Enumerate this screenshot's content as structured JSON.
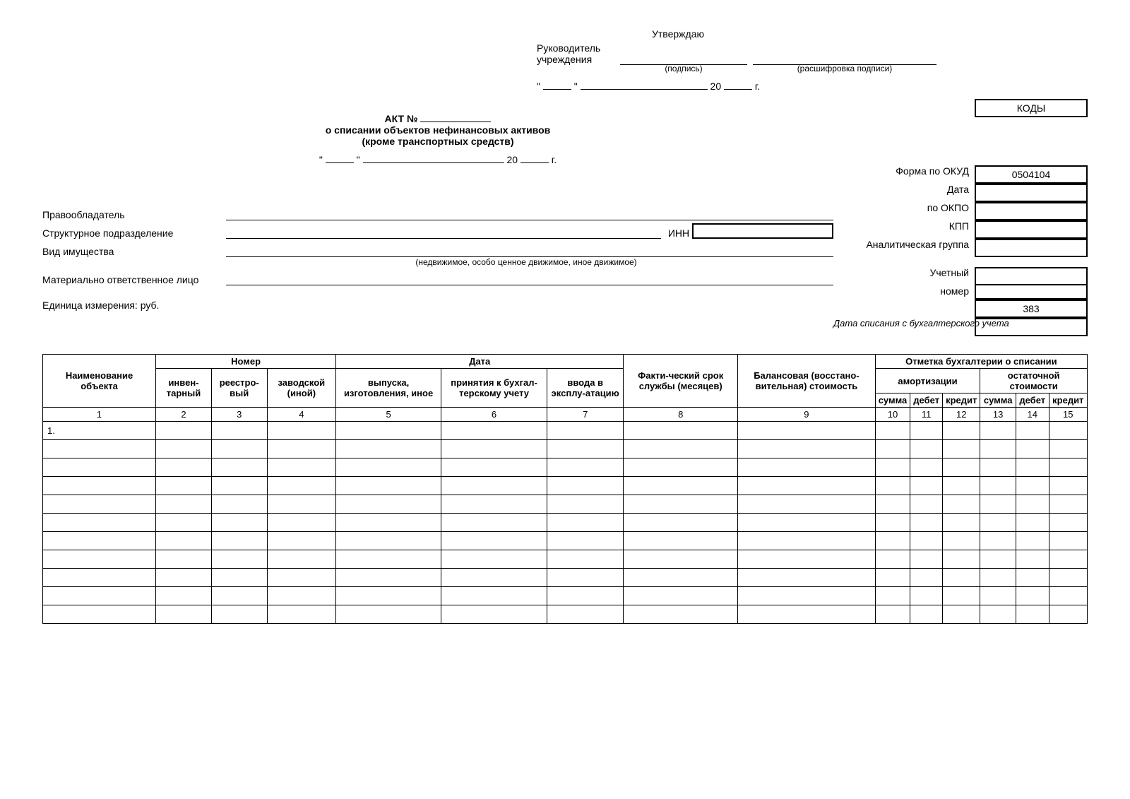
{
  "approve": {
    "title": "Утверждаю",
    "head_label": "Руководитель учреждения",
    "sig_hint": "(подпись)",
    "decipher_hint": "(расшифровка подписи)",
    "year_prefix": "20",
    "year_suffix": "г."
  },
  "title": {
    "act": "АКТ №",
    "line1": "о списании объектов нефинансовых активов",
    "line2": "(кроме транспортных средств)",
    "year_prefix": "20",
    "year_suffix": "г."
  },
  "codes": {
    "header": "КОДЫ",
    "okud_label": "Форма по ОКУД",
    "okud_value": "0504104",
    "date_label": "Дата",
    "okpo_label": "по ОКПО",
    "kpp_label": "КПП",
    "inn_label": "ИНН",
    "analyt_label": "Аналитическая группа",
    "uch_label1": "Учетный",
    "uch_label2": "номер",
    "unit_value": "383",
    "writeoff_hint": "Дата списания с бухгалтерского учета"
  },
  "labels": {
    "owner": "Правообладатель",
    "subdiv": "Структурное подразделение",
    "prop_type": "Вид имущества",
    "prop_hint": "(недвижимое, особо ценное движимое, иное движимое)",
    "resp_person": "Материально ответственное лицо",
    "unit": "Единица измерения: руб."
  },
  "table": {
    "h_name": "Наименование объекта",
    "h_number": "Номер",
    "h_inv": "инвен-тарный",
    "h_reg": "реестро-вый",
    "h_factory": "заводской (иной)",
    "h_date": "Дата",
    "h_release": "выпуска, изготовления, иное",
    "h_accept": "принятия к бухгал-терскому учету",
    "h_commiss": "ввода в эксплу-атацию",
    "h_fact": "Факти-ческий срок службы (месяцев)",
    "h_balance": "Балансовая (восстано-вительная) стоимость",
    "h_acc_mark": "Отметка бухгалтерии о списании",
    "h_amort": "амортизации",
    "h_resid": "остаточной стоимости",
    "h_sum": "сумма",
    "h_debit": "дебет",
    "h_credit": "кредит",
    "cols": [
      "1",
      "2",
      "3",
      "4",
      "5",
      "6",
      "7",
      "8",
      "9",
      "10",
      "11",
      "12",
      "13",
      "14",
      "15"
    ],
    "first_row": "1.",
    "empty_rows": 10
  }
}
